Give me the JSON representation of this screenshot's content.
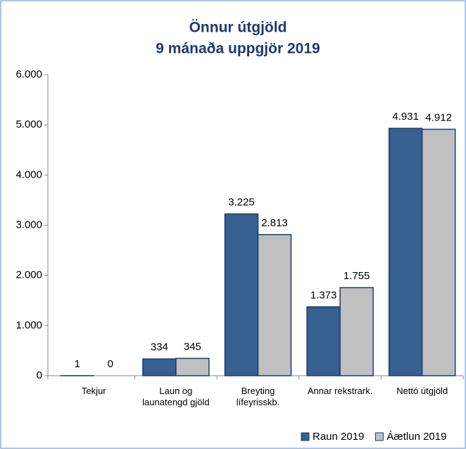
{
  "chart_data": {
    "type": "bar",
    "title": [
      "Önnur útgjöld",
      "9 mánaða uppgjör 2019"
    ],
    "categories": [
      "Tekjur",
      "Laun og launatengd gjöld",
      "Breyting lífeyrisskb.",
      "Annar rekstrark.",
      "Nettó útgjöld"
    ],
    "series": [
      {
        "name": "Raun 2019",
        "color": "#35608f",
        "values": [
          1,
          334,
          3225,
          1373,
          4931
        ],
        "value_labels": [
          "1",
          "334",
          "3.225",
          "1.373",
          "4.931"
        ]
      },
      {
        "name": "Áætlun 2019",
        "color": "#c0c0c0",
        "values": [
          0,
          345,
          2813,
          1755,
          4912
        ],
        "value_labels": [
          "0",
          "345",
          "2.813",
          "1.755",
          "4.912"
        ]
      }
    ],
    "ylim": [
      0,
      6000
    ],
    "yticks": [
      0,
      {
        "value": 1000,
        "label": "1.000"
      },
      {
        "value": 2000,
        "label": "2.000"
      },
      {
        "value": 3000,
        "label": "3.000"
      },
      {
        "value": 4000,
        "label": "4.000"
      },
      {
        "value": 5000,
        "label": "5.000"
      },
      {
        "value": 6000,
        "label": "6.000"
      }
    ],
    "legend": "bottom-right"
  }
}
